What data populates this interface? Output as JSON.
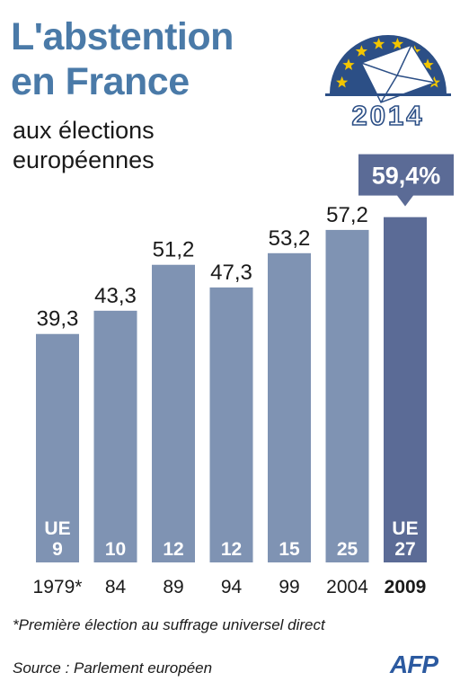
{
  "header": {
    "title_line1": "L'abstention",
    "title_line2": "en France",
    "subtitle_line1": "aux élections",
    "subtitle_line2": "européennes"
  },
  "logo": {
    "year": "2014",
    "icon": "eu-stars-ballot-envelope-icon"
  },
  "chart_data": {
    "type": "bar",
    "categories": [
      "1979*",
      "84",
      "89",
      "94",
      "99",
      "2004",
      "2009"
    ],
    "values": [
      39.3,
      43.3,
      51.2,
      47.3,
      53.2,
      57.2,
      59.4
    ],
    "value_labels": [
      "39,3",
      "43,3",
      "51,2",
      "47,3",
      "53,2",
      "57,2",
      "59,4%"
    ],
    "eu_members": [
      "UE\n9",
      "10",
      "12",
      "12",
      "15",
      "25",
      "UE\n27"
    ],
    "highlight_index": 6,
    "ylim": [
      0,
      62
    ],
    "title": "L'abstention en France aux élections européennes",
    "xlabel": "",
    "ylabel": "",
    "grid": false,
    "legend": "none"
  },
  "colors": {
    "bar": "#7f93b3",
    "bar_highlight": "#5b6b96",
    "callout": "#5b6b96",
    "title": "#4a7aa8",
    "logo_blue": "#2c4f86",
    "star": "#f2c500"
  },
  "footer": {
    "note": "*Première élection au suffrage universel direct",
    "source": "Source : Parlement européen",
    "agency": "AFP"
  }
}
